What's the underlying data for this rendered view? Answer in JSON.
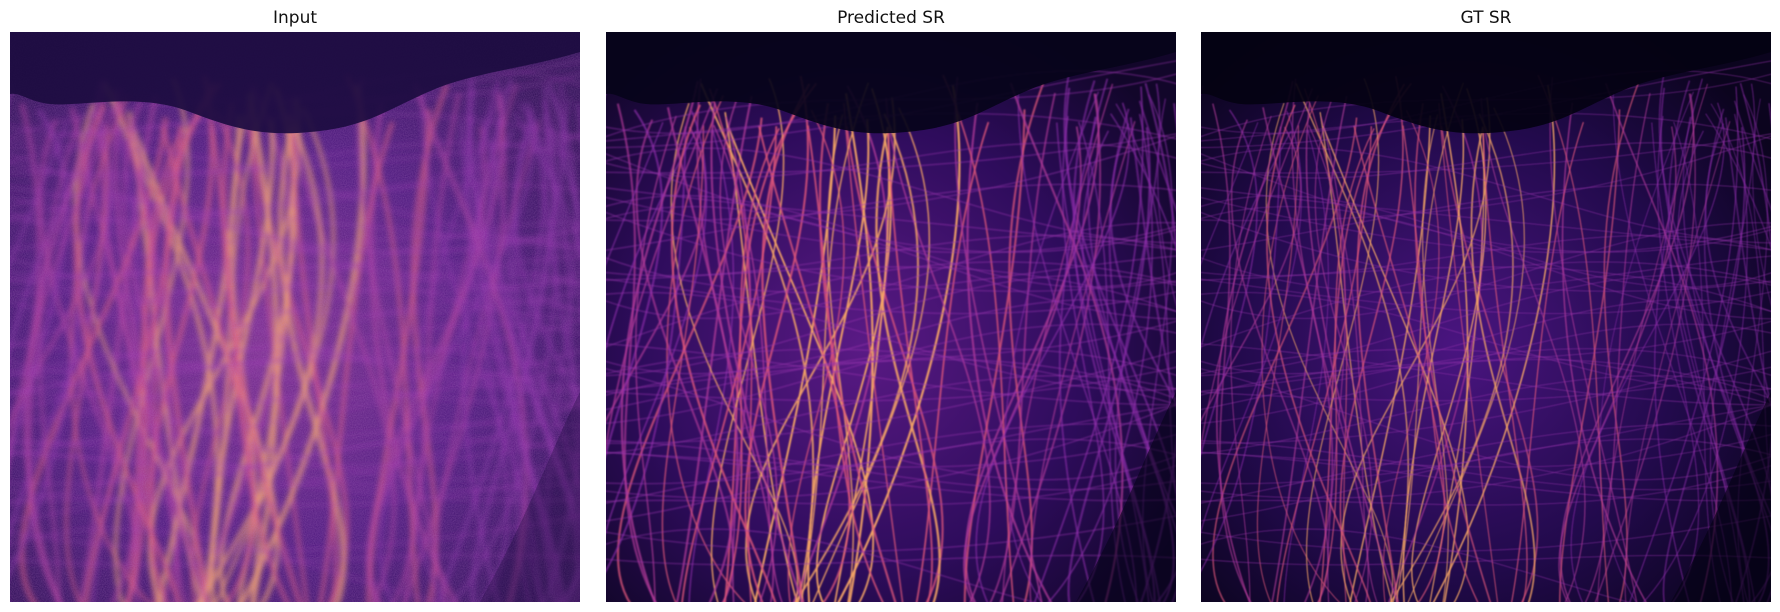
{
  "figure": {
    "panels": [
      {
        "title": "Input",
        "rendering": "noisy-blurred",
        "seed": 11
      },
      {
        "title": "Predicted SR",
        "rendering": "sharp-smooth",
        "seed": 11
      },
      {
        "title": "GT SR",
        "rendering": "sharp-dim",
        "seed": 11
      }
    ],
    "colormap": "magma",
    "colors": {
      "background_dark": "#05030f",
      "filament_mid": "#7b2aa8",
      "filament_bright": "#fca95f"
    }
  }
}
